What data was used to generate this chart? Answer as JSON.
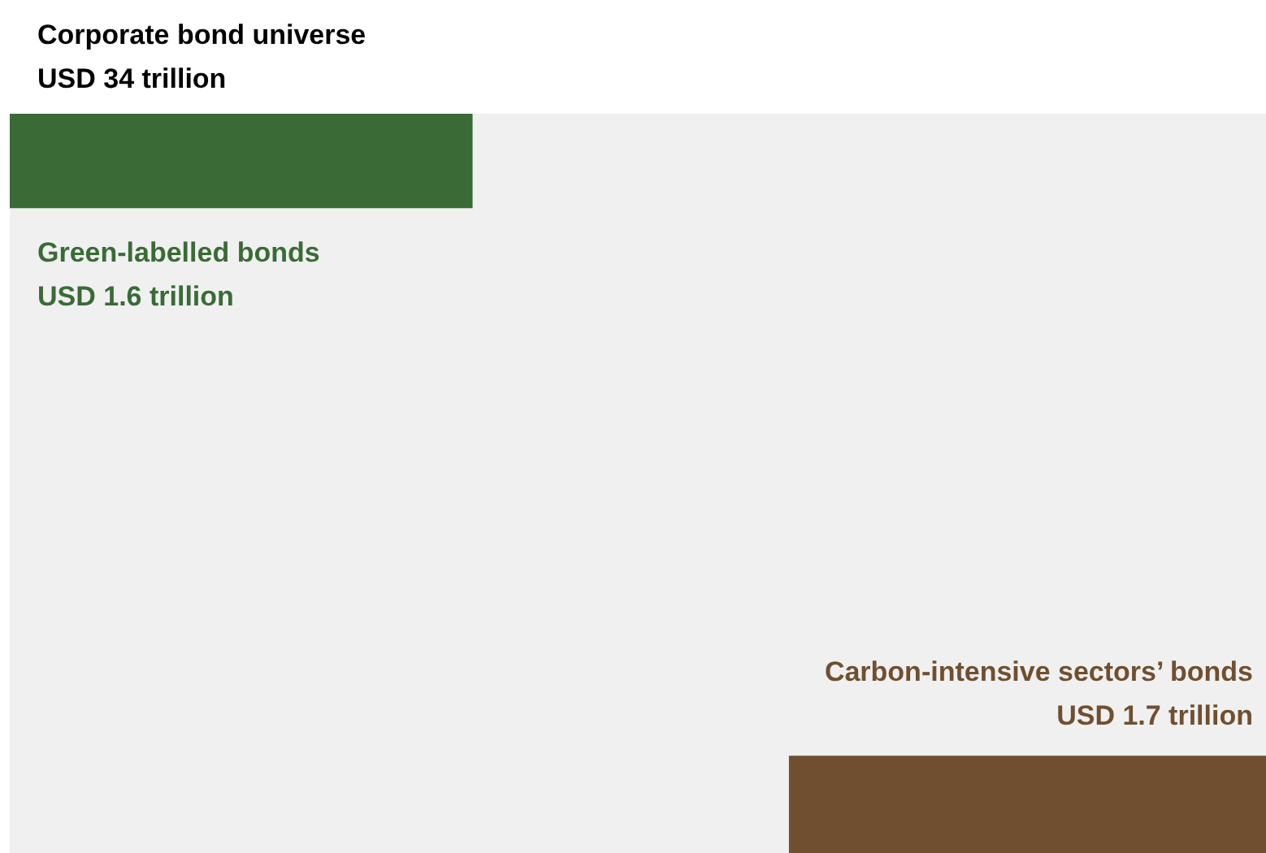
{
  "chart_data": {
    "type": "other",
    "categories": [
      "Corporate bond universe",
      "Green-labelled bonds",
      "Carbon-intensive sectors’ bonds"
    ],
    "values": [
      34,
      1.6,
      1.7
    ],
    "colors": [
      "#f0f0f0",
      "#3a6b37",
      "#704f30"
    ],
    "value_labels": [
      "USD 34 trillion",
      "USD 1.6 trillion",
      "USD 1.7 trillion"
    ]
  }
}
